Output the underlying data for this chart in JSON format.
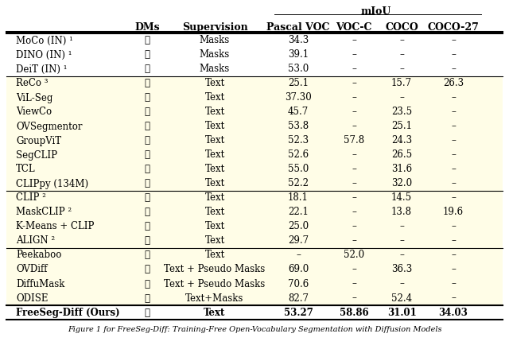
{
  "title": "mIoU",
  "col_headers": [
    "",
    "DMs",
    "Supervision",
    "Pascal VOC",
    "VOC-C",
    "COCO",
    "COCO-27"
  ],
  "sections": [
    {
      "bg": "#ffffff",
      "rows": [
        [
          "MoCo (IN) ¹",
          "✗",
          "Masks",
          "34.3",
          "–",
          "–",
          "–"
        ],
        [
          "DINO (IN) ¹",
          "✗",
          "Masks",
          "39.1",
          "–",
          "–",
          "–"
        ],
        [
          "DeiT (IN) ¹",
          "✗",
          "Masks",
          "53.0",
          "–",
          "–",
          "–"
        ]
      ]
    },
    {
      "bg": "#fdfde6",
      "rows": [
        [
          "ReCo ³",
          "✗",
          "Text",
          "25.1",
          "–",
          "15.7",
          "26.3"
        ],
        [
          "ViL-Seg",
          "✗",
          "Text",
          "37.30",
          "–",
          "–",
          "–"
        ],
        [
          "ViewCo",
          "✗",
          "Text",
          "45.7",
          "–",
          "23.5",
          "–"
        ],
        [
          "OVSegmentor",
          "✗",
          "Text",
          "53.8",
          "–",
          "25.1",
          "–"
        ],
        [
          "GroupViT",
          "✗",
          "Text",
          "52.3",
          "57.8",
          "24.3",
          "–"
        ],
        [
          "SegCLIP",
          "✗",
          "Text",
          "52.6",
          "–",
          "26.5",
          "–"
        ],
        [
          "TCL",
          "✗",
          "Text",
          "55.0",
          "–",
          "31.6",
          "–"
        ],
        [
          "CLIPpy (134M)",
          "✗",
          "Text",
          "52.2",
          "–",
          "32.0",
          "–"
        ]
      ]
    },
    {
      "bg": "#fdfde6",
      "rows": [
        [
          "CLIP ²",
          "✗",
          "Text",
          "18.1",
          "–",
          "14.5",
          "–"
        ],
        [
          "MaskCLIP ²",
          "✗",
          "Text",
          "22.1",
          "–",
          "13.8",
          "19.6"
        ],
        [
          "K-Means + CLIP",
          "✗",
          "Text",
          "25.0",
          "–",
          "–",
          "–"
        ],
        [
          "ALIGN ²",
          "✗",
          "Text",
          "29.7",
          "–",
          "–",
          "–"
        ]
      ]
    },
    {
      "bg": "#fdfde6",
      "rows": [
        [
          "Peekaboo",
          "✓",
          "Text",
          "–",
          "52.0",
          "–",
          "–"
        ],
        [
          "OVDiff",
          "✓",
          "Text + Pseudo Masks",
          "69.0",
          "–",
          "36.3",
          "–"
        ],
        [
          "DiffuMask",
          "✓",
          "Text + Pseudo Masks",
          "70.6",
          "–",
          "–",
          "–"
        ],
        [
          "ODISE",
          "✓",
          "Text+Masks",
          "82.7",
          "–",
          "52.4",
          "–"
        ]
      ]
    }
  ],
  "last_row": [
    "FreeSeg-Diff (Ours)",
    "✓",
    "Text",
    "53.27",
    "58.86",
    "31.01",
    "34.03"
  ],
  "caption": "Figure 1 for FreeSeg-Diff: Training-Free Open-Vocabulary Segmentation with Diffusion Models",
  "yellow_bg": "#fffde7",
  "white_bg": "#ffffff",
  "header_line_color": "#000000",
  "section_line_color": "#aaaaaa"
}
